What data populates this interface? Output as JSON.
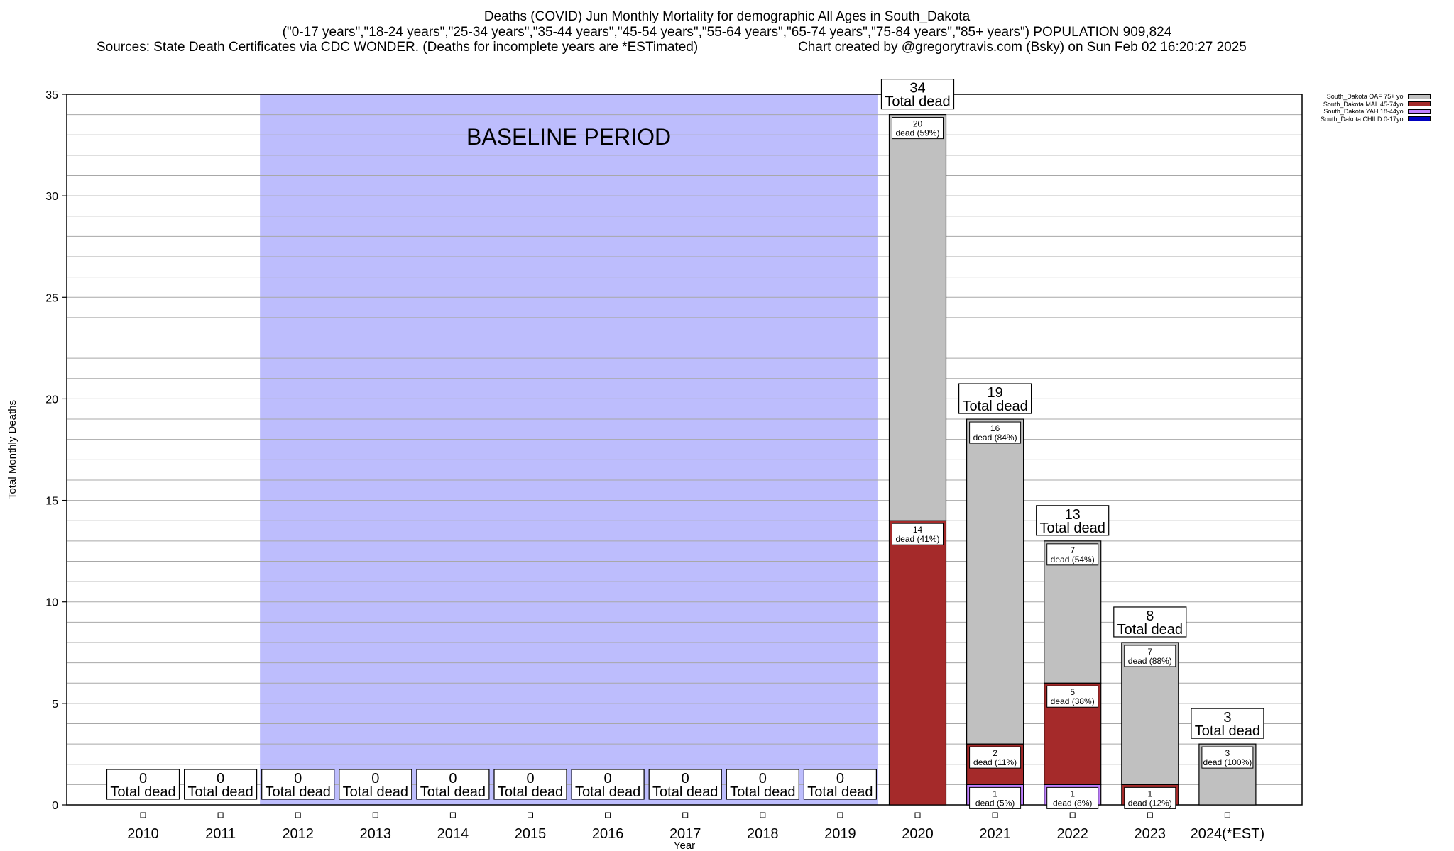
{
  "header": {
    "title": "Deaths (COVID) Jun Monthly Mortality for demographic All Ages in South_Dakota",
    "subtitle": "(\"0-17 years\",\"18-24 years\",\"25-34 years\",\"35-44 years\",\"45-54 years\",\"55-64 years\",\"65-74 years\",\"75-84 years\",\"85+ years\") POPULATION 909,824",
    "sources": "Sources: State Death Certificates via CDC WONDER. (Deaths for incomplete years are *ESTimated)",
    "credit": "Chart created by @gregorytravis.com (Bsky) on Sun Feb 02 16:20:27 2025"
  },
  "legend": [
    {
      "label": "South_Dakota OAF 75+ yo",
      "color": "#c0c0c0"
    },
    {
      "label": "South_Dakota MAL 45-74yo",
      "color": "#a52a2a"
    },
    {
      "label": "South_Dakota YAH 18-44yo",
      "color": "#c080ff"
    },
    {
      "label": "South_Dakota CHILD 0-17yo",
      "color": "#0000c0"
    }
  ],
  "chart_data": {
    "type": "bar",
    "stacked": true,
    "xlabel": "Year",
    "ylabel": "Total Monthly Deaths",
    "ylim": [
      0,
      35
    ],
    "yticks": [
      0,
      5,
      10,
      15,
      20,
      25,
      30,
      35
    ],
    "grid": true,
    "legend_position": "top-right",
    "baseline_label": "BASELINE PERIOD",
    "baseline_range": [
      "2012",
      "2019"
    ],
    "baseline_color": "#bdbdfd",
    "total_word": "Total dead",
    "categories": [
      "2010",
      "2011",
      "2012",
      "2013",
      "2014",
      "2015",
      "2016",
      "2017",
      "2018",
      "2019",
      "2020",
      "2021",
      "2022",
      "2023",
      "2024(*EST)"
    ],
    "totals": [
      0,
      0,
      0,
      0,
      0,
      0,
      0,
      0,
      0,
      0,
      34,
      19,
      13,
      8,
      3
    ],
    "series": [
      {
        "name": "South_Dakota CHILD 0-17yo",
        "color": "#0000c0",
        "values": [
          0,
          0,
          0,
          0,
          0,
          0,
          0,
          0,
          0,
          0,
          0,
          0,
          0,
          0,
          0
        ],
        "labels": [
          "",
          "",
          "",
          "",
          "",
          "",
          "",
          "",
          "",
          "",
          "",
          "",
          "",
          "",
          ""
        ]
      },
      {
        "name": "South_Dakota YAH 18-44yo",
        "color": "#c080ff",
        "values": [
          0,
          0,
          0,
          0,
          0,
          0,
          0,
          0,
          0,
          0,
          0,
          1,
          1,
          0,
          0
        ],
        "labels": [
          "",
          "",
          "",
          "",
          "",
          "",
          "",
          "",
          "",
          "",
          "",
          "dead (5%)",
          "dead (8%)",
          "",
          ""
        ]
      },
      {
        "name": "South_Dakota MAL 45-74yo",
        "color": "#a52a2a",
        "values": [
          0,
          0,
          0,
          0,
          0,
          0,
          0,
          0,
          0,
          0,
          14,
          2,
          5,
          1,
          0
        ],
        "labels": [
          "",
          "",
          "",
          "",
          "",
          "",
          "",
          "",
          "",
          "",
          "dead (41%)",
          "dead (11%)",
          "dead (38%)",
          "dead (12%)",
          ""
        ]
      },
      {
        "name": "South_Dakota OAF 75+ yo",
        "color": "#c0c0c0",
        "values": [
          0,
          0,
          0,
          0,
          0,
          0,
          0,
          0,
          0,
          0,
          20,
          16,
          7,
          7,
          3
        ],
        "labels": [
          "",
          "",
          "",
          "",
          "",
          "",
          "",
          "",
          "",
          "",
          "dead (59%)",
          "dead (84%)",
          "dead (54%)",
          "dead (88%)",
          "dead (100%)"
        ]
      }
    ]
  }
}
